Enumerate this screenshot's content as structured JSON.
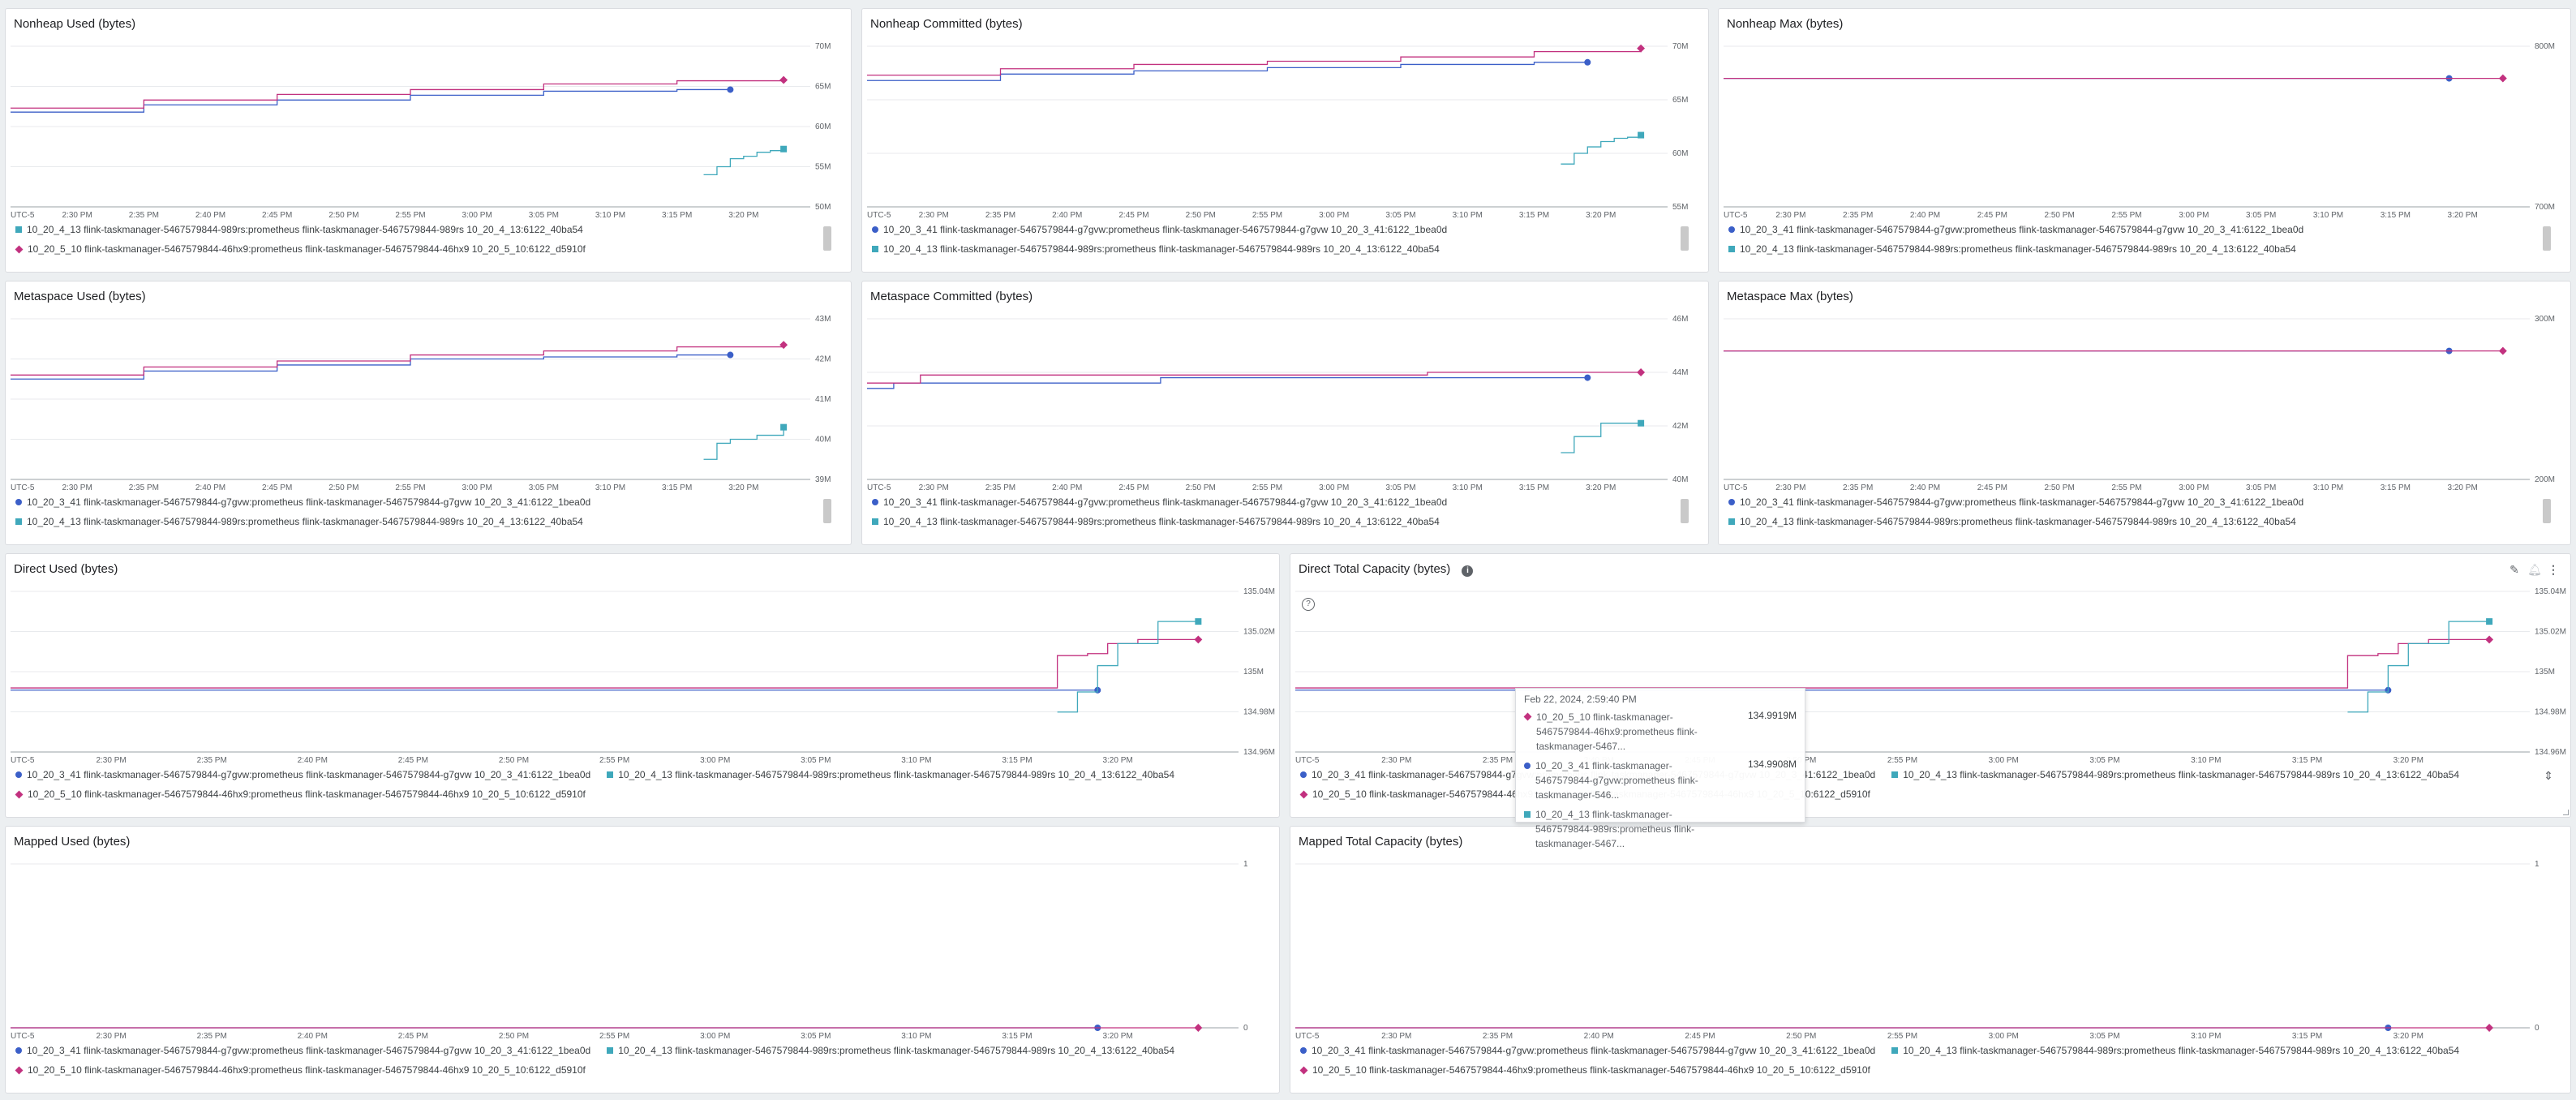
{
  "colors": {
    "s_3_41": "#3b5fc8",
    "s_5_10": "#c2317f",
    "s_4_13": "#3fa8bb"
  },
  "series_names": {
    "s_3_41": "10_20_3_41 flink-taskmanager-5467579844-g7gvw:prometheus flink-taskmanager-5467579844-g7gvw 10_20_3_41:6122_1bea0d",
    "s_5_10": "10_20_5_10 flink-taskmanager-5467579844-46hx9:prometheus flink-taskmanager-5467579844-46hx9 10_20_5_10:6122_d5910f",
    "s_4_13": "10_20_4_13 flink-taskmanager-5467579844-989rs:prometheus flink-taskmanager-5467579844-989rs 10_20_4_13:6122_40ba54"
  },
  "x_ticks": [
    "UTC-5",
    "2:30 PM",
    "2:35 PM",
    "2:40 PM",
    "2:45 PM",
    "2:50 PM",
    "2:55 PM",
    "3:00 PM",
    "3:05 PM",
    "3:10 PM",
    "3:15 PM",
    "3:20 PM"
  ],
  "panels": {
    "nonheap_used": {
      "title": "Nonheap Used (bytes)",
      "legend": [
        "s_4_13",
        "s_5_10"
      ]
    },
    "nonheap_committed": {
      "title": "Nonheap Committed (bytes)",
      "legend": [
        "s_3_41",
        "s_4_13"
      ]
    },
    "nonheap_max": {
      "title": "Nonheap Max (bytes)",
      "legend": [
        "s_3_41",
        "s_4_13"
      ]
    },
    "metaspace_used": {
      "title": "Metaspace Used (bytes)",
      "legend": [
        "s_3_41",
        "s_4_13"
      ]
    },
    "metaspace_committed": {
      "title": "Metaspace Committed (bytes)",
      "legend": [
        "s_3_41",
        "s_4_13"
      ]
    },
    "metaspace_max": {
      "title": "Metaspace Max (bytes)",
      "legend": [
        "s_3_41",
        "s_4_13"
      ]
    },
    "direct_used": {
      "title": "Direct Used (bytes)",
      "legend": [
        "s_3_41",
        "s_4_13",
        "s_5_10"
      ]
    },
    "direct_total": {
      "title": "Direct Total Capacity (bytes)",
      "legend": [
        "s_3_41",
        "s_4_13",
        "s_5_10"
      ]
    },
    "mapped_used": {
      "title": "Mapped Used (bytes)",
      "legend": [
        "s_3_41",
        "s_4_13",
        "s_5_10"
      ]
    },
    "mapped_total": {
      "title": "Mapped Total Capacity (bytes)",
      "legend": [
        "s_3_41",
        "s_4_13",
        "s_5_10"
      ]
    }
  },
  "tooltip": {
    "timestamp": "Feb 22, 2024, 2:59:40 PM",
    "rows": [
      {
        "series": "s_5_10",
        "name": "10_20_5_10 flink-taskmanager-5467579844-46hx9:prometheus flink-taskmanager-5467...",
        "value": "134.9919M"
      },
      {
        "series": "s_3_41",
        "name": "10_20_3_41 flink-taskmanager-5467579844-g7gvw:prometheus flink-taskmanager-546...",
        "value": "134.9908M"
      },
      {
        "series": "s_4_13",
        "name": "10_20_4_13 flink-taskmanager-5467579844-989rs:prometheus flink-taskmanager-5467...",
        "value": ""
      }
    ]
  },
  "chart_data": [
    {
      "panel": "nonheap_used",
      "type": "line",
      "title": "Nonheap Used (bytes)",
      "x_start": "2:25 PM",
      "x_end": "3:23 PM",
      "y_ticks": [
        "50M",
        "55M",
        "60M",
        "65M",
        "70M"
      ],
      "ylim": [
        50,
        70
      ],
      "y_unit": "M",
      "series": [
        {
          "key": "s_3_41",
          "x": [
            0,
            10,
            20,
            30,
            40,
            50,
            54
          ],
          "y": [
            61.8,
            62.7,
            63.3,
            63.9,
            64.4,
            64.6,
            64.6
          ],
          "marker": "circle"
        },
        {
          "key": "s_5_10",
          "x": [
            0,
            10,
            20,
            30,
            40,
            50,
            58
          ],
          "y": [
            62.3,
            63.3,
            64.0,
            64.6,
            65.3,
            65.7,
            65.8
          ],
          "marker": "diamond"
        },
        {
          "key": "s_4_13",
          "x": [
            52,
            53,
            54,
            55,
            56,
            57,
            58
          ],
          "y": [
            54.0,
            55.0,
            56.0,
            56.3,
            56.8,
            57.0,
            57.2
          ],
          "marker": "square"
        }
      ]
    },
    {
      "panel": "nonheap_committed",
      "type": "line",
      "title": "Nonheap Committed (bytes)",
      "x_start": "2:25 PM",
      "x_end": "3:23 PM",
      "y_ticks": [
        "55M",
        "60M",
        "65M",
        "70M"
      ],
      "ylim": [
        55,
        70
      ],
      "y_unit": "M",
      "series": [
        {
          "key": "s_3_41",
          "x": [
            0,
            10,
            20,
            30,
            40,
            50,
            54
          ],
          "y": [
            66.8,
            67.4,
            67.7,
            68.0,
            68.3,
            68.5,
            68.5
          ],
          "marker": "circle"
        },
        {
          "key": "s_5_10",
          "x": [
            0,
            10,
            20,
            30,
            40,
            50,
            58
          ],
          "y": [
            67.3,
            67.9,
            68.3,
            68.6,
            69.0,
            69.5,
            69.8
          ],
          "marker": "diamond"
        },
        {
          "key": "s_4_13",
          "x": [
            52,
            53,
            54,
            55,
            56,
            57,
            58
          ],
          "y": [
            59.0,
            60.0,
            60.6,
            61.1,
            61.4,
            61.5,
            61.7
          ],
          "marker": "square"
        }
      ]
    },
    {
      "panel": "nonheap_max",
      "type": "line",
      "title": "Nonheap Max (bytes)",
      "x_start": "2:25 PM",
      "x_end": "3:23 PM",
      "y_ticks": [
        "700M",
        "800M"
      ],
      "ylim": [
        700,
        800
      ],
      "y_unit": "M",
      "series": [
        {
          "key": "s_3_41",
          "x": [
            0,
            54
          ],
          "y": [
            780,
            780
          ],
          "marker": "circle"
        },
        {
          "key": "s_5_10",
          "x": [
            0,
            58
          ],
          "y": [
            780,
            780
          ],
          "marker": "diamond"
        }
      ]
    },
    {
      "panel": "metaspace_used",
      "type": "line",
      "title": "Metaspace Used (bytes)",
      "x_start": "2:25 PM",
      "x_end": "3:23 PM",
      "y_ticks": [
        "39M",
        "40M",
        "41M",
        "42M",
        "43M"
      ],
      "ylim": [
        39,
        43
      ],
      "y_unit": "M",
      "series": [
        {
          "key": "s_3_41",
          "x": [
            0,
            10,
            20,
            30,
            40,
            50,
            54
          ],
          "y": [
            41.5,
            41.7,
            41.85,
            42.0,
            42.05,
            42.1,
            42.1
          ],
          "marker": "circle"
        },
        {
          "key": "s_5_10",
          "x": [
            0,
            10,
            20,
            30,
            40,
            50,
            58
          ],
          "y": [
            41.6,
            41.8,
            41.95,
            42.1,
            42.2,
            42.3,
            42.35
          ],
          "marker": "diamond"
        },
        {
          "key": "s_4_13",
          "x": [
            52,
            53,
            54,
            56,
            58
          ],
          "y": [
            39.5,
            39.9,
            40.0,
            40.1,
            40.3
          ],
          "marker": "square"
        }
      ]
    },
    {
      "panel": "metaspace_committed",
      "type": "line",
      "title": "Metaspace Committed (bytes)",
      "x_start": "2:25 PM",
      "x_end": "3:23 PM",
      "y_ticks": [
        "40M",
        "42M",
        "44M",
        "46M"
      ],
      "ylim": [
        40,
        46
      ],
      "y_unit": "M",
      "series": [
        {
          "key": "s_3_41",
          "x": [
            0,
            2,
            22,
            54
          ],
          "y": [
            43.4,
            43.6,
            43.8,
            43.8
          ],
          "marker": "circle"
        },
        {
          "key": "s_5_10",
          "x": [
            0,
            4,
            42,
            58
          ],
          "y": [
            43.6,
            43.9,
            44.0,
            44.0
          ],
          "marker": "diamond"
        },
        {
          "key": "s_4_13",
          "x": [
            52,
            53,
            55,
            58
          ],
          "y": [
            41.0,
            41.6,
            42.1,
            42.1
          ],
          "marker": "square"
        }
      ]
    },
    {
      "panel": "metaspace_max",
      "type": "line",
      "title": "Metaspace Max (bytes)",
      "x_start": "2:25 PM",
      "x_end": "3:23 PM",
      "y_ticks": [
        "200M",
        "300M"
      ],
      "ylim": [
        200,
        300
      ],
      "y_unit": "M",
      "series": [
        {
          "key": "s_3_41",
          "x": [
            0,
            54
          ],
          "y": [
            280,
            280
          ],
          "marker": "circle"
        },
        {
          "key": "s_5_10",
          "x": [
            0,
            58
          ],
          "y": [
            280,
            280
          ],
          "marker": "diamond"
        }
      ]
    },
    {
      "panel": "direct_used",
      "type": "line",
      "title": "Direct Used (bytes)",
      "x_start": "2:25 PM",
      "x_end": "3:24 PM",
      "y_ticks": [
        "134.96M",
        "134.98M",
        "135M",
        "135.02M",
        "135.04M"
      ],
      "ylim": [
        134.96,
        135.04
      ],
      "y_unit": "M",
      "series": [
        {
          "key": "s_3_41",
          "x": [
            0,
            53,
            54
          ],
          "y": [
            134.9908,
            134.9908,
            134.9908
          ],
          "marker": "circle"
        },
        {
          "key": "s_5_10",
          "x": [
            0,
            51.5,
            52,
            53.5,
            54.5,
            56,
            59
          ],
          "y": [
            134.9919,
            134.9919,
            135.008,
            135.009,
            135.014,
            135.016,
            135.016
          ],
          "marker": "diamond"
        },
        {
          "key": "s_4_13",
          "x": [
            52,
            53,
            54,
            55,
            57,
            59
          ],
          "y": [
            134.9799,
            134.9899,
            135.003,
            135.014,
            135.025,
            135.025
          ],
          "marker": "square"
        }
      ]
    },
    {
      "panel": "direct_total",
      "type": "line",
      "title": "Direct Total Capacity (bytes)",
      "x_start": "2:25 PM",
      "x_end": "3:24 PM",
      "y_ticks": [
        "134.96M",
        "134.98M",
        "135M",
        "135.02M",
        "135.04M"
      ],
      "ylim": [
        134.96,
        135.04
      ],
      "y_unit": "M",
      "series": [
        {
          "key": "s_3_41",
          "x": [
            0,
            53,
            54
          ],
          "y": [
            134.9908,
            134.9908,
            134.9908
          ],
          "marker": "circle"
        },
        {
          "key": "s_5_10",
          "x": [
            0,
            51.5,
            52,
            53.5,
            54.5,
            56,
            59
          ],
          "y": [
            134.9919,
            134.9919,
            135.008,
            135.009,
            135.014,
            135.016,
            135.016
          ],
          "marker": "diamond"
        },
        {
          "key": "s_4_13",
          "x": [
            52,
            53,
            54,
            55,
            57,
            59
          ],
          "y": [
            134.9799,
            134.9899,
            135.003,
            135.014,
            135.025,
            135.025
          ],
          "marker": "square"
        }
      ]
    },
    {
      "panel": "mapped_used",
      "type": "line",
      "title": "Mapped Used (bytes)",
      "x_start": "2:25 PM",
      "x_end": "3:24 PM",
      "y_ticks": [
        "0",
        "1"
      ],
      "ylim": [
        0,
        1
      ],
      "y_unit": "",
      "series": [
        {
          "key": "s_3_41",
          "x": [
            0,
            54
          ],
          "y": [
            0,
            0
          ],
          "marker": "circle"
        },
        {
          "key": "s_5_10",
          "x": [
            0,
            59
          ],
          "y": [
            0,
            0
          ],
          "marker": "diamond"
        }
      ]
    },
    {
      "panel": "mapped_total",
      "type": "line",
      "title": "Mapped Total Capacity (bytes)",
      "x_start": "2:25 PM",
      "x_end": "3:24 PM",
      "y_ticks": [
        "0",
        "1"
      ],
      "ylim": [
        0,
        1
      ],
      "y_unit": "",
      "series": [
        {
          "key": "s_3_41",
          "x": [
            0,
            54
          ],
          "y": [
            0,
            0
          ],
          "marker": "circle"
        },
        {
          "key": "s_5_10",
          "x": [
            0,
            59
          ],
          "y": [
            0,
            0
          ],
          "marker": "diamond"
        }
      ]
    }
  ]
}
